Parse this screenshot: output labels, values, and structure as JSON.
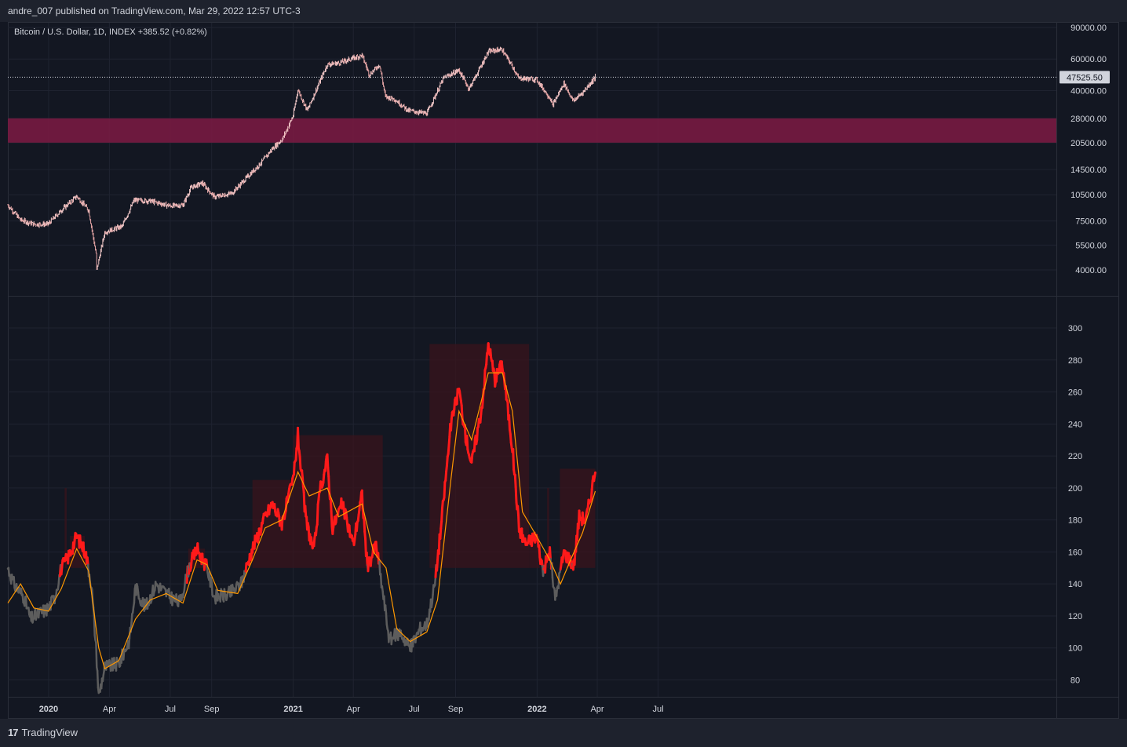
{
  "header": {
    "published_text": "andre_007 published on TradingView.com, Mar 29, 2022 12:57 UTC-3"
  },
  "legend": {
    "symbol_text": "Bitcoin / U.S. Dollar, 1D, INDEX",
    "change_text": "+385.52 (+0.82%)"
  },
  "footer": {
    "brand": "TradingView",
    "brand_mark": "17"
  },
  "colors": {
    "background": "#131722",
    "grid": "#1f2330",
    "zone": "#7a1a42",
    "candle": "#e8a7a7",
    "indicator_hot": "#ff1a1a",
    "indicator_cold": "#5d5d5d",
    "signal_line": "#ff9800",
    "shade": "#3a141c"
  },
  "chart_data": [
    {
      "type": "candlestick",
      "title": "Bitcoin / U.S. Dollar, 1D, INDEX",
      "y_scale": "log",
      "y_ticks": [
        "90000.00",
        "60000.00",
        "40000.00",
        "28000.00",
        "20500.00",
        "14500.00",
        "10500.00",
        "7500.00",
        "5500.00",
        "4000.00"
      ],
      "y_tick_values": [
        90000,
        60000,
        40000,
        28000,
        20500,
        14500,
        10500,
        7500,
        5500,
        4000
      ],
      "last_price_label": "47525.50",
      "last_price": 47525.5,
      "zone_band": [
        20500,
        28000
      ],
      "x_ticks": [
        "2020",
        "Apr",
        "Jul",
        "Sep",
        "2021",
        "Apr",
        "Jul",
        "Sep",
        "2022",
        "Apr",
        "Jul"
      ],
      "price_path": [
        [
          "2019-11-01",
          9200
        ],
        [
          "2019-11-20",
          7600
        ],
        [
          "2019-12-10",
          7200
        ],
        [
          "2019-12-31",
          7200
        ],
        [
          "2020-01-20",
          8600
        ],
        [
          "2020-02-12",
          10300
        ],
        [
          "2020-03-01",
          8600
        ],
        [
          "2020-03-12",
          4900
        ],
        [
          "2020-03-13",
          4000
        ],
        [
          "2020-03-25",
          6500
        ],
        [
          "2020-04-20",
          7000
        ],
        [
          "2020-05-08",
          9800
        ],
        [
          "2020-06-01",
          9700
        ],
        [
          "2020-07-01",
          9100
        ],
        [
          "2020-07-20",
          9200
        ],
        [
          "2020-08-01",
          11500
        ],
        [
          "2020-08-18",
          12200
        ],
        [
          "2020-09-05",
          10200
        ],
        [
          "2020-10-01",
          10700
        ],
        [
          "2020-10-21",
          12800
        ],
        [
          "2020-11-15",
          16000
        ],
        [
          "2020-12-01",
          19000
        ],
        [
          "2020-12-16",
          21500
        ],
        [
          "2021-01-01",
          29000
        ],
        [
          "2021-01-08",
          40500
        ],
        [
          "2021-01-22",
          31000
        ],
        [
          "2021-02-21",
          56000
        ],
        [
          "2021-03-10",
          57000
        ],
        [
          "2021-04-14",
          63000
        ],
        [
          "2021-04-25",
          49000
        ],
        [
          "2021-05-10",
          56000
        ],
        [
          "2021-05-19",
          37000
        ],
        [
          "2021-06-01",
          36000
        ],
        [
          "2021-06-22",
          31000
        ],
        [
          "2021-07-20",
          29800
        ],
        [
          "2021-08-14",
          47000
        ],
        [
          "2021-09-06",
          52000
        ],
        [
          "2021-09-21",
          41000
        ],
        [
          "2021-10-01",
          48000
        ],
        [
          "2021-10-20",
          66000
        ],
        [
          "2021-11-09",
          68000
        ],
        [
          "2021-11-26",
          54000
        ],
        [
          "2021-12-04",
          47000
        ],
        [
          "2021-12-31",
          46200
        ],
        [
          "2022-01-21",
          36000
        ],
        [
          "2022-01-24",
          33000
        ],
        [
          "2022-02-10",
          44000
        ],
        [
          "2022-02-24",
          35000
        ],
        [
          "2022-03-10",
          39000
        ],
        [
          "2022-03-29",
          47525
        ]
      ]
    },
    {
      "type": "line",
      "y_ticks": [
        "300",
        "280",
        "260",
        "240",
        "220",
        "200",
        "180",
        "160",
        "140",
        "120",
        "100",
        "80"
      ],
      "y_tick_values": [
        300,
        280,
        260,
        240,
        220,
        200,
        180,
        160,
        140,
        120,
        100,
        80
      ],
      "x_ticks": [
        "2020",
        "Apr",
        "Jul",
        "Sep",
        "2021",
        "Apr",
        "Jul",
        "Sep",
        "2022",
        "Apr",
        "Jul"
      ],
      "hot_threshold": 150,
      "series": [
        {
          "values": [
            [
              "2019-11-01",
              150
            ],
            [
              "2019-11-10",
              140
            ],
            [
              "2019-11-25",
              132
            ],
            [
              "2019-12-05",
              118
            ],
            [
              "2019-12-20",
              122
            ],
            [
              "2020-01-01",
              125
            ],
            [
              "2020-01-10",
              132
            ],
            [
              "2020-01-20",
              150
            ],
            [
              "2020-02-01",
              158
            ],
            [
              "2020-02-12",
              170
            ],
            [
              "2020-02-25",
              160
            ],
            [
              "2020-03-05",
              140
            ],
            [
              "2020-03-12",
              100
            ],
            [
              "2020-03-16",
              70
            ],
            [
              "2020-03-25",
              88
            ],
            [
              "2020-04-15",
              90
            ],
            [
              "2020-05-01",
              105
            ],
            [
              "2020-05-10",
              138
            ],
            [
              "2020-05-25",
              125
            ],
            [
              "2020-06-10",
              140
            ],
            [
              "2020-07-01",
              132
            ],
            [
              "2020-07-15",
              128
            ],
            [
              "2020-07-29",
              150
            ],
            [
              "2020-08-10",
              162
            ],
            [
              "2020-08-25",
              150
            ],
            [
              "2020-09-05",
              132
            ],
            [
              "2020-09-25",
              133
            ],
            [
              "2020-10-15",
              140
            ],
            [
              "2020-11-01",
              162
            ],
            [
              "2020-11-20",
              182
            ],
            [
              "2020-12-01",
              190
            ],
            [
              "2020-12-15",
              178
            ],
            [
              "2021-01-01",
              205
            ],
            [
              "2021-01-08",
              233
            ],
            [
              "2021-01-20",
              180
            ],
            [
              "2021-02-01",
              160
            ],
            [
              "2021-02-10",
              198
            ],
            [
              "2021-02-21",
              218
            ],
            [
              "2021-03-01",
              175
            ],
            [
              "2021-03-15",
              190
            ],
            [
              "2021-04-01",
              165
            ],
            [
              "2021-04-14",
              196
            ],
            [
              "2021-04-22",
              150
            ],
            [
              "2021-05-05",
              165
            ],
            [
              "2021-05-15",
              135
            ],
            [
              "2021-05-25",
              105
            ],
            [
              "2021-06-10",
              110
            ],
            [
              "2021-06-25",
              100
            ],
            [
              "2021-07-10",
              112
            ],
            [
              "2021-07-20",
              115
            ],
            [
              "2021-08-01",
              140
            ],
            [
              "2021-08-10",
              175
            ],
            [
              "2021-08-25",
              240
            ],
            [
              "2021-09-06",
              262
            ],
            [
              "2021-09-15",
              235
            ],
            [
              "2021-09-25",
              215
            ],
            [
              "2021-10-10",
              250
            ],
            [
              "2021-10-20",
              290
            ],
            [
              "2021-10-30",
              268
            ],
            [
              "2021-11-10",
              278
            ],
            [
              "2021-11-25",
              225
            ],
            [
              "2021-12-05",
              175
            ],
            [
              "2021-12-15",
              165
            ],
            [
              "2021-12-31",
              170
            ],
            [
              "2022-01-10",
              148
            ],
            [
              "2022-01-20",
              160
            ],
            [
              "2022-01-28",
              130
            ],
            [
              "2022-02-10",
              160
            ],
            [
              "2022-02-25",
              152
            ],
            [
              "2022-03-05",
              182
            ],
            [
              "2022-03-15",
              180
            ],
            [
              "2022-03-22",
              195
            ],
            [
              "2022-03-29",
              212
            ]
          ]
        },
        {
          "values": [
            [
              "2019-11-01",
              128
            ],
            [
              "2019-11-20",
              140
            ],
            [
              "2019-12-10",
              125
            ],
            [
              "2020-01-01",
              123
            ],
            [
              "2020-01-20",
              137
            ],
            [
              "2020-02-12",
              162
            ],
            [
              "2020-03-01",
              148
            ],
            [
              "2020-03-16",
              100
            ],
            [
              "2020-03-25",
              87
            ],
            [
              "2020-04-15",
              92
            ],
            [
              "2020-05-10",
              118
            ],
            [
              "2020-06-01",
              130
            ],
            [
              "2020-06-25",
              134
            ],
            [
              "2020-07-20",
              128
            ],
            [
              "2020-08-10",
              155
            ],
            [
              "2020-08-25",
              152
            ],
            [
              "2020-09-10",
              136
            ],
            [
              "2020-10-10",
              134
            ],
            [
              "2020-11-01",
              155
            ],
            [
              "2020-11-20",
              175
            ],
            [
              "2020-12-15",
              180
            ],
            [
              "2021-01-08",
              210
            ],
            [
              "2021-01-25",
              195
            ],
            [
              "2021-02-21",
              200
            ],
            [
              "2021-03-10",
              182
            ],
            [
              "2021-04-14",
              190
            ],
            [
              "2021-05-01",
              160
            ],
            [
              "2021-05-20",
              150
            ],
            [
              "2021-06-05",
              112
            ],
            [
              "2021-06-25",
              104
            ],
            [
              "2021-07-20",
              110
            ],
            [
              "2021-08-05",
              130
            ],
            [
              "2021-08-25",
              205
            ],
            [
              "2021-09-06",
              248
            ],
            [
              "2021-09-25",
              230
            ],
            [
              "2021-10-20",
              272
            ],
            [
              "2021-11-10",
              272
            ],
            [
              "2021-11-25",
              248
            ],
            [
              "2021-12-10",
              185
            ],
            [
              "2021-12-31",
              170
            ],
            [
              "2022-01-20",
              155
            ],
            [
              "2022-02-05",
              140
            ],
            [
              "2022-02-20",
              155
            ],
            [
              "2022-03-10",
              172
            ],
            [
              "2022-03-29",
              198
            ]
          ]
        }
      ],
      "shaded_regions": [
        [
          "2020-01-25",
          "2020-01-28"
        ],
        [
          "2020-02-02",
          "2020-02-24"
        ],
        [
          "2020-07-28",
          "2020-08-22"
        ],
        [
          "2020-11-01",
          "2021-01-01"
        ],
        [
          "2021-01-01",
          "2021-05-15"
        ],
        [
          "2021-07-24",
          "2021-12-20"
        ],
        [
          "2021-12-20",
          "2022-01-05"
        ],
        [
          "2022-01-16",
          "2022-01-19"
        ],
        [
          "2022-02-04",
          "2022-03-29"
        ]
      ]
    }
  ]
}
